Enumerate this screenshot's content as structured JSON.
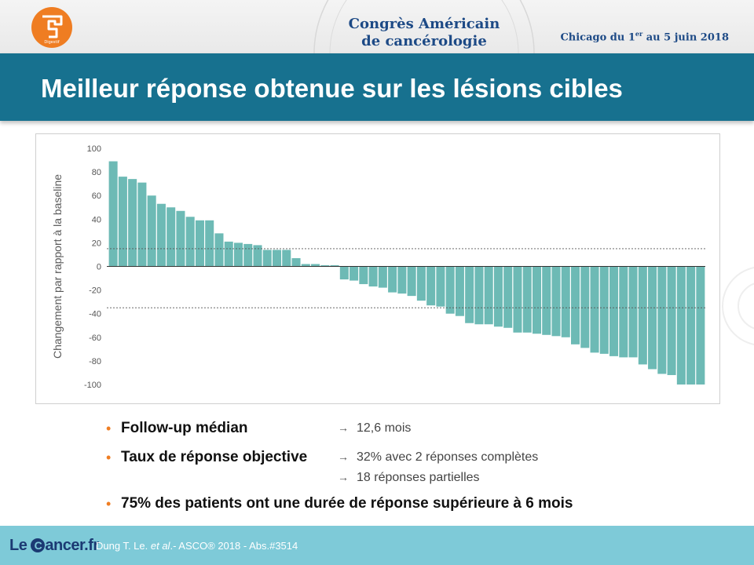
{
  "header": {
    "logo_label": "Digestif",
    "congress_line1": "Congrès Américain",
    "congress_line2": "de cancérologie",
    "dates_prefix": "Chicago du 1",
    "dates_sup": "er",
    "dates_suffix": " au 5 juin 2018"
  },
  "slide": {
    "title": "Meilleur réponse obtenue sur les lésions cibles"
  },
  "chart_data": {
    "type": "bar",
    "title": "",
    "xlabel": "",
    "ylabel": "Changement par rapport à la baseline",
    "ylim": [
      -100,
      100
    ],
    "yticks": [
      100,
      80,
      60,
      40,
      20,
      0,
      -20,
      -40,
      -60,
      -80,
      -100
    ],
    "reference_lines": [
      15,
      -35
    ],
    "bar_color": "#6dbab5",
    "values": [
      89,
      76,
      74,
      71,
      60,
      53,
      50,
      47,
      42,
      39,
      39,
      28,
      21,
      20,
      19,
      18,
      14,
      14,
      14,
      7,
      2,
      2,
      1,
      1,
      -11,
      -12,
      -15,
      -17,
      -18,
      -22,
      -23,
      -25,
      -29,
      -33,
      -34,
      -40,
      -42,
      -48,
      -49,
      -49,
      -51,
      -52,
      -56,
      -56,
      -57,
      -58,
      -59,
      -60,
      -66,
      -69,
      -73,
      -74,
      -76,
      -77,
      -77,
      -83,
      -87,
      -91,
      -92,
      -100,
      -100,
      -100
    ]
  },
  "bullets": [
    {
      "label": "Follow-up médian",
      "values": [
        "12,6 mois"
      ]
    },
    {
      "label": "Taux de réponse objective",
      "values": [
        "32% avec 2 réponses  complètes",
        "18 réponses  partielles"
      ]
    },
    {
      "label": "75% des patients ont une durée de réponse supérieure à 6 mois",
      "values": []
    }
  ],
  "footer": {
    "brand_left": "Le ",
    "brand_c": "C",
    "brand_right": "ancer.fr",
    "ref_prefix": "Dung T. Le. ",
    "ref_italic": "et al",
    "ref_suffix": ".- ASCO® 2018  - Abs.#3514"
  }
}
